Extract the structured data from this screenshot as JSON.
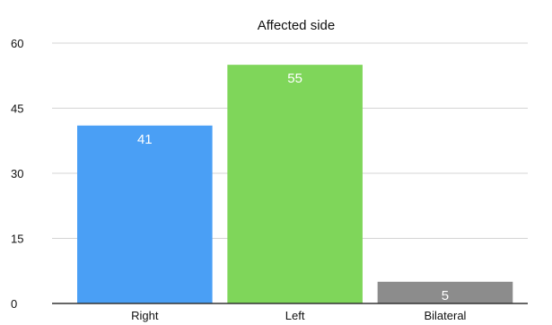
{
  "chart_data": {
    "type": "bar",
    "title": "Affected side",
    "xlabel": "",
    "ylabel": "",
    "categories": [
      "Right",
      "Left",
      "Bilateral"
    ],
    "values": [
      41,
      55,
      5
    ],
    "value_labels": [
      "41",
      "55",
      "5"
    ],
    "colors": [
      "#4a9ff5",
      "#7fd65a",
      "#8c8c8c"
    ],
    "ylim": [
      0,
      60
    ],
    "yticks": [
      0,
      15,
      30,
      45,
      60
    ],
    "ytick_labels": [
      "0",
      "15",
      "30",
      "45",
      "60"
    ],
    "grid": true,
    "legend": "none"
  }
}
